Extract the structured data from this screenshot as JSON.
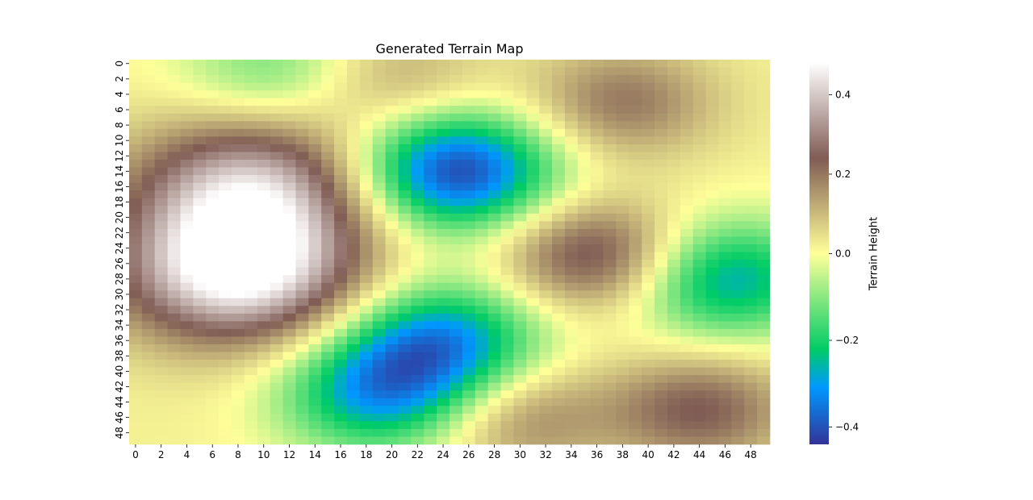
{
  "chart_data": {
    "type": "heatmap",
    "title": "Generated Terrain Map",
    "xlabel": "",
    "ylabel": "",
    "colorbar_label": "Terrain Height",
    "colormap": "terrain",
    "rows": 50,
    "cols": 50,
    "value_range": [
      -0.44,
      0.48
    ],
    "x_ticks": [
      "0",
      "2",
      "4",
      "6",
      "8",
      "10",
      "12",
      "14",
      "16",
      "18",
      "20",
      "22",
      "24",
      "26",
      "28",
      "30",
      "32",
      "34",
      "36",
      "38",
      "40",
      "42",
      "44",
      "46",
      "48"
    ],
    "y_ticks": [
      "0",
      "2",
      "4",
      "6",
      "8",
      "10",
      "12",
      "14",
      "16",
      "18",
      "20",
      "22",
      "24",
      "26",
      "28",
      "30",
      "32",
      "34",
      "36",
      "38",
      "40",
      "42",
      "44",
      "46",
      "48"
    ],
    "colorbar_ticks": [
      {
        "value": 0.4,
        "label": "0.4"
      },
      {
        "value": 0.2,
        "label": "0.2"
      },
      {
        "value": 0.0,
        "label": "0.0"
      },
      {
        "value": -0.2,
        "label": "−0.2"
      },
      {
        "value": -0.4,
        "label": "−0.4"
      }
    ],
    "features": [
      {
        "kind": "peak",
        "center_col": 8,
        "center_row": 27,
        "height": 0.48
      },
      {
        "kind": "peak",
        "center_col": 9,
        "center_row": 16,
        "height": 0.35
      },
      {
        "kind": "peak",
        "center_col": 36,
        "center_row": 25,
        "height": 0.27
      },
      {
        "kind": "peak",
        "center_col": 44,
        "center_row": 45,
        "height": 0.22
      },
      {
        "kind": "peak",
        "center_col": 38,
        "center_row": 5,
        "height": 0.18
      },
      {
        "kind": "peak",
        "center_col": 20,
        "center_row": 2,
        "height": 0.12
      },
      {
        "kind": "peak",
        "center_col": 30,
        "center_row": 46,
        "height": 0.16
      },
      {
        "kind": "valley",
        "center_col": 25,
        "center_row": 14,
        "height": -0.44
      },
      {
        "kind": "valley",
        "center_col": 24,
        "center_row": 36,
        "height": -0.32
      },
      {
        "kind": "valley",
        "center_col": 19,
        "center_row": 43,
        "height": -0.3
      },
      {
        "kind": "valley",
        "center_col": 46,
        "center_row": 28,
        "height": -0.3
      },
      {
        "kind": "valley",
        "center_col": 11,
        "center_row": 1,
        "height": -0.15
      }
    ]
  }
}
